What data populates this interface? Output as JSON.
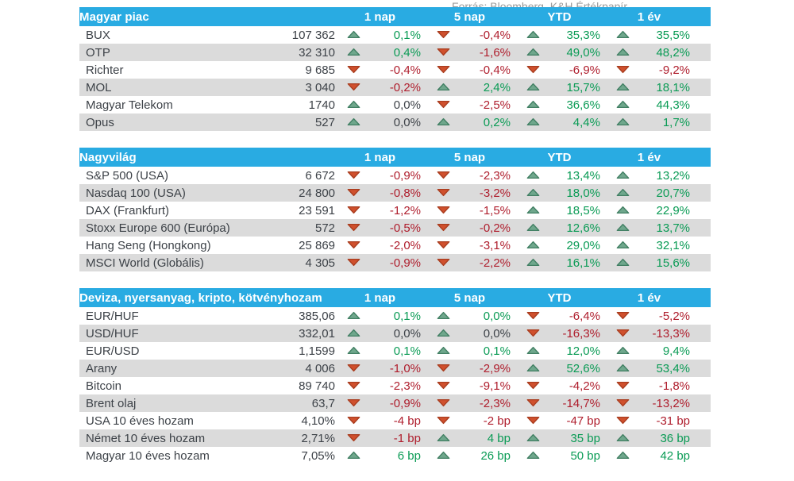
{
  "theme": {
    "header_bg": "#29ABE2",
    "header_text": "#FFFFFF",
    "stripe": "#DBDBDB",
    "dark": "#3D4248",
    "green": "#0A9B55",
    "red": "#AF1E2D",
    "muted": "#9A9A9A",
    "tri_up": "#6FA78C",
    "tri_up_border": "#417F63",
    "tri_down": "#D0502D",
    "tri_down_border": "#A93D1F"
  },
  "icons": {
    "up": "triangle-up-icon",
    "down": "triangle-down-icon"
  },
  "columns": [
    "1 nap",
    "5 nap",
    "YTD",
    "1 év"
  ],
  "sections": [
    {
      "title": "Magyar piac",
      "rows": [
        {
          "name": "BUX",
          "value": "107 362",
          "changes": [
            {
              "dir": "up",
              "tone": "pos",
              "text": "0,1%"
            },
            {
              "dir": "down",
              "tone": "neg",
              "text": "-0,4%"
            },
            {
              "dir": "up",
              "tone": "pos",
              "text": "35,3%"
            },
            {
              "dir": "up",
              "tone": "pos",
              "text": "35,5%"
            }
          ]
        },
        {
          "name": "OTP",
          "value": "32 310",
          "changes": [
            {
              "dir": "up",
              "tone": "pos",
              "text": "0,4%"
            },
            {
              "dir": "down",
              "tone": "neg",
              "text": "-1,6%"
            },
            {
              "dir": "up",
              "tone": "pos",
              "text": "49,0%"
            },
            {
              "dir": "up",
              "tone": "pos",
              "text": "48,2%"
            }
          ]
        },
        {
          "name": "Richter",
          "value": "9 685",
          "changes": [
            {
              "dir": "down",
              "tone": "neg",
              "text": "-0,4%"
            },
            {
              "dir": "down",
              "tone": "neg",
              "text": "-0,4%"
            },
            {
              "dir": "down",
              "tone": "neg",
              "text": "-6,9%"
            },
            {
              "dir": "down",
              "tone": "neg",
              "text": "-9,2%"
            }
          ]
        },
        {
          "name": "MOL",
          "value": "3 040",
          "changes": [
            {
              "dir": "down",
              "tone": "neg",
              "text": "-0,2%"
            },
            {
              "dir": "up",
              "tone": "pos",
              "text": "2,4%"
            },
            {
              "dir": "up",
              "tone": "pos",
              "text": "15,7%"
            },
            {
              "dir": "up",
              "tone": "pos",
              "text": "18,1%"
            }
          ]
        },
        {
          "name": "Magyar Telekom",
          "value": "1740",
          "changes": [
            {
              "dir": "up",
              "tone": "neutral",
              "text": "0,0%"
            },
            {
              "dir": "down",
              "tone": "neg",
              "text": "-2,5%"
            },
            {
              "dir": "up",
              "tone": "pos",
              "text": "36,6%"
            },
            {
              "dir": "up",
              "tone": "pos",
              "text": "44,3%"
            }
          ]
        },
        {
          "name": "Opus",
          "value": "527",
          "changes": [
            {
              "dir": "up",
              "tone": "neutral",
              "text": "0,0%"
            },
            {
              "dir": "up",
              "tone": "pos",
              "text": "0,2%"
            },
            {
              "dir": "up",
              "tone": "pos",
              "text": "4,4%"
            },
            {
              "dir": "up",
              "tone": "pos",
              "text": "1,7%"
            }
          ]
        }
      ]
    },
    {
      "title": "Nagyvilág",
      "rows": [
        {
          "name": "S&P 500 (USA)",
          "value": "6 672",
          "changes": [
            {
              "dir": "down",
              "tone": "neg",
              "text": "-0,9%"
            },
            {
              "dir": "down",
              "tone": "neg",
              "text": "-2,3%"
            },
            {
              "dir": "up",
              "tone": "pos",
              "text": "13,4%"
            },
            {
              "dir": "up",
              "tone": "pos",
              "text": "13,2%"
            }
          ]
        },
        {
          "name": "Nasdaq 100 (USA)",
          "value": "24 800",
          "changes": [
            {
              "dir": "down",
              "tone": "neg",
              "text": "-0,8%"
            },
            {
              "dir": "down",
              "tone": "neg",
              "text": "-3,2%"
            },
            {
              "dir": "up",
              "tone": "pos",
              "text": "18,0%"
            },
            {
              "dir": "up",
              "tone": "pos",
              "text": "20,7%"
            }
          ]
        },
        {
          "name": "DAX (Frankfurt)",
          "value": "23 591",
          "changes": [
            {
              "dir": "down",
              "tone": "neg",
              "text": "-1,2%"
            },
            {
              "dir": "down",
              "tone": "neg",
              "text": "-1,5%"
            },
            {
              "dir": "up",
              "tone": "pos",
              "text": "18,5%"
            },
            {
              "dir": "up",
              "tone": "pos",
              "text": "22,9%"
            }
          ]
        },
        {
          "name": "Stoxx Europe 600 (Európa)",
          "value": "572",
          "changes": [
            {
              "dir": "down",
              "tone": "neg",
              "text": "-0,5%"
            },
            {
              "dir": "down",
              "tone": "neg",
              "text": "-0,2%"
            },
            {
              "dir": "up",
              "tone": "pos",
              "text": "12,6%"
            },
            {
              "dir": "up",
              "tone": "pos",
              "text": "13,7%"
            }
          ]
        },
        {
          "name": "Hang Seng (Hongkong)",
          "value": "25 869",
          "changes": [
            {
              "dir": "down",
              "tone": "neg",
              "text": "-2,0%"
            },
            {
              "dir": "down",
              "tone": "neg",
              "text": "-3,1%"
            },
            {
              "dir": "up",
              "tone": "pos",
              "text": "29,0%"
            },
            {
              "dir": "up",
              "tone": "pos",
              "text": "32,1%"
            }
          ]
        },
        {
          "name": "MSCI World (Globális)",
          "value": "4 305",
          "changes": [
            {
              "dir": "down",
              "tone": "neg",
              "text": "-0,9%"
            },
            {
              "dir": "down",
              "tone": "neg",
              "text": "-2,2%"
            },
            {
              "dir": "up",
              "tone": "pos",
              "text": "16,1%"
            },
            {
              "dir": "up",
              "tone": "pos",
              "text": "15,6%"
            }
          ]
        }
      ]
    },
    {
      "title": "Deviza, nyersanyag, kripto, kötvényhozam",
      "rows": [
        {
          "name": "EUR/HUF",
          "value": "385,06",
          "changes": [
            {
              "dir": "up",
              "tone": "pos",
              "text": "0,1%"
            },
            {
              "dir": "up",
              "tone": "pos",
              "text": "0,0%"
            },
            {
              "dir": "down",
              "tone": "neg",
              "text": "-6,4%"
            },
            {
              "dir": "down",
              "tone": "neg",
              "text": "-5,2%"
            }
          ]
        },
        {
          "name": "USD/HUF",
          "value": "332,01",
          "changes": [
            {
              "dir": "up",
              "tone": "neutral",
              "text": "0,0%"
            },
            {
              "dir": "up",
              "tone": "neutral",
              "text": "0,0%"
            },
            {
              "dir": "down",
              "tone": "neg",
              "text": "-16,3%"
            },
            {
              "dir": "down",
              "tone": "neg",
              "text": "-13,3%"
            }
          ]
        },
        {
          "name": "EUR/USD",
          "value": "1,1599",
          "changes": [
            {
              "dir": "up",
              "tone": "pos",
              "text": "0,1%"
            },
            {
              "dir": "up",
              "tone": "pos",
              "text": "0,1%"
            },
            {
              "dir": "up",
              "tone": "pos",
              "text": "12,0%"
            },
            {
              "dir": "up",
              "tone": "pos",
              "text": "9,4%"
            }
          ]
        },
        {
          "name": "Arany",
          "value": "4 006",
          "changes": [
            {
              "dir": "down",
              "tone": "neg",
              "text": "-1,0%"
            },
            {
              "dir": "down",
              "tone": "neg",
              "text": "-2,9%"
            },
            {
              "dir": "up",
              "tone": "pos",
              "text": "52,6%"
            },
            {
              "dir": "up",
              "tone": "pos",
              "text": "53,4%"
            }
          ]
        },
        {
          "name": "Bitcoin",
          "value": "89 740",
          "changes": [
            {
              "dir": "down",
              "tone": "neg",
              "text": "-2,3%"
            },
            {
              "dir": "down",
              "tone": "neg",
              "text": "-9,1%"
            },
            {
              "dir": "down",
              "tone": "neg",
              "text": "-4,2%"
            },
            {
              "dir": "down",
              "tone": "neg",
              "text": "-1,8%"
            }
          ]
        },
        {
          "name": "Brent olaj",
          "value": "63,7",
          "changes": [
            {
              "dir": "down",
              "tone": "neg",
              "text": "-0,9%"
            },
            {
              "dir": "down",
              "tone": "neg",
              "text": "-2,3%"
            },
            {
              "dir": "down",
              "tone": "neg",
              "text": "-14,7%"
            },
            {
              "dir": "down",
              "tone": "neg",
              "text": "-13,2%"
            }
          ]
        },
        {
          "name": "USA 10 éves hozam",
          "value": "4,10%",
          "changes": [
            {
              "dir": "down",
              "tone": "neg",
              "text": "-4 bp"
            },
            {
              "dir": "down",
              "tone": "neg",
              "text": "-2 bp"
            },
            {
              "dir": "down",
              "tone": "neg",
              "text": "-47 bp"
            },
            {
              "dir": "down",
              "tone": "neg",
              "text": "-31 bp"
            }
          ]
        },
        {
          "name": "Német 10 éves hozam",
          "value": "2,71%",
          "changes": [
            {
              "dir": "down",
              "tone": "neg",
              "text": "-1 bp"
            },
            {
              "dir": "up",
              "tone": "pos",
              "text": "4 bp"
            },
            {
              "dir": "up",
              "tone": "pos",
              "text": "35 bp"
            },
            {
              "dir": "up",
              "tone": "pos",
              "text": "36 bp"
            }
          ]
        },
        {
          "name": "Magyar 10 éves hozam",
          "value": "7,05%",
          "changes": [
            {
              "dir": "up",
              "tone": "pos",
              "text": "6 bp"
            },
            {
              "dir": "up",
              "tone": "pos",
              "text": "26 bp"
            },
            {
              "dir": "up",
              "tone": "pos",
              "text": "50 bp"
            },
            {
              "dir": "up",
              "tone": "pos",
              "text": "42 bp"
            }
          ]
        }
      ]
    }
  ],
  "footer": "Forrás: Bloomberg, K&H Értékpapír",
  "chart_data": [
    {
      "type": "table",
      "title": "Magyar piac",
      "columns": [
        "Név",
        "Érték",
        "1 nap",
        "5 nap",
        "YTD",
        "1 év"
      ],
      "rows": [
        [
          "BUX",
          "107 362",
          "0,1%",
          "-0,4%",
          "35,3%",
          "35,5%"
        ],
        [
          "OTP",
          "32 310",
          "0,4%",
          "-1,6%",
          "49,0%",
          "48,2%"
        ],
        [
          "Richter",
          "9 685",
          "-0,4%",
          "-0,4%",
          "-6,9%",
          "-9,2%"
        ],
        [
          "MOL",
          "3 040",
          "-0,2%",
          "2,4%",
          "15,7%",
          "18,1%"
        ],
        [
          "Magyar Telekom",
          "1740",
          "0,0%",
          "-2,5%",
          "36,6%",
          "44,3%"
        ],
        [
          "Opus",
          "527",
          "0,0%",
          "0,2%",
          "4,4%",
          "1,7%"
        ]
      ]
    },
    {
      "type": "table",
      "title": "Nagyvilág",
      "columns": [
        "Név",
        "Érték",
        "1 nap",
        "5 nap",
        "YTD",
        "1 év"
      ],
      "rows": [
        [
          "S&P 500 (USA)",
          "6 672",
          "-0,9%",
          "-2,3%",
          "13,4%",
          "13,2%"
        ],
        [
          "Nasdaq 100 (USA)",
          "24 800",
          "-0,8%",
          "-3,2%",
          "18,0%",
          "20,7%"
        ],
        [
          "DAX (Frankfurt)",
          "23 591",
          "-1,2%",
          "-1,5%",
          "18,5%",
          "22,9%"
        ],
        [
          "Stoxx Europe 600 (Európa)",
          "572",
          "-0,5%",
          "-0,2%",
          "12,6%",
          "13,7%"
        ],
        [
          "Hang Seng (Hongkong)",
          "25 869",
          "-2,0%",
          "-3,1%",
          "29,0%",
          "32,1%"
        ],
        [
          "MSCI World (Globális)",
          "4 305",
          "-0,9%",
          "-2,2%",
          "16,1%",
          "15,6%"
        ]
      ]
    },
    {
      "type": "table",
      "title": "Deviza, nyersanyag, kripto, kötvényhozam",
      "columns": [
        "Név",
        "Érték",
        "1 nap",
        "5 nap",
        "YTD",
        "1 év"
      ],
      "rows": [
        [
          "EUR/HUF",
          "385,06",
          "0,1%",
          "0,0%",
          "-6,4%",
          "-5,2%"
        ],
        [
          "USD/HUF",
          "332,01",
          "0,0%",
          "0,0%",
          "-16,3%",
          "-13,3%"
        ],
        [
          "EUR/USD",
          "1,1599",
          "0,1%",
          "0,1%",
          "12,0%",
          "9,4%"
        ],
        [
          "Arany",
          "4 006",
          "-1,0%",
          "-2,9%",
          "52,6%",
          "53,4%"
        ],
        [
          "Bitcoin",
          "89 740",
          "-2,3%",
          "-9,1%",
          "-4,2%",
          "-1,8%"
        ],
        [
          "Brent olaj",
          "63,7",
          "-0,9%",
          "-2,3%",
          "-14,7%",
          "-13,2%"
        ],
        [
          "USA 10 éves hozam",
          "4,10%",
          "-4 bp",
          "-2 bp",
          "-47 bp",
          "-31 bp"
        ],
        [
          "Német 10 éves hozam",
          "2,71%",
          "-1 bp",
          "4 bp",
          "35 bp",
          "36 bp"
        ],
        [
          "Magyar 10 éves hozam",
          "7,05%",
          "6 bp",
          "26 bp",
          "50 bp",
          "42 bp"
        ]
      ]
    }
  ]
}
